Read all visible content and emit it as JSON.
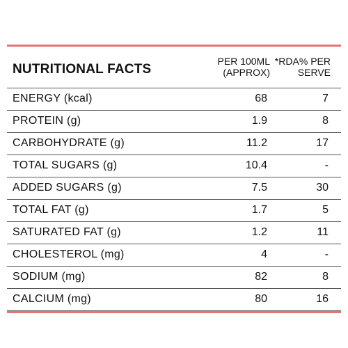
{
  "header": {
    "title": "NUTRITIONAL FACTS",
    "col1_line1": "PER 100ML",
    "col1_line2": "(APPROX)",
    "col2_line1": "*RDA% PER",
    "col2_line2": "SERVE"
  },
  "rows": [
    {
      "name": "ENERGY (kcal)",
      "per100ml": "68",
      "rda": "7"
    },
    {
      "name": "PROTEIN (g)",
      "per100ml": "1.9",
      "rda": "8"
    },
    {
      "name": "CARBOHYDRATE (g)",
      "per100ml": "11.2",
      "rda": "17"
    },
    {
      "name": "TOTAL SUGARS (g)",
      "per100ml": "10.4",
      "rda": "-"
    },
    {
      "name": "ADDED SUGARS (g)",
      "per100ml": "7.5",
      "rda": "30"
    },
    {
      "name": "TOTAL FAT (g)",
      "per100ml": "1.7",
      "rda": "5"
    },
    {
      "name": "SATURATED FAT (g)",
      "per100ml": "1.2",
      "rda": "11"
    },
    {
      "name": "CHOLESTEROL (mg)",
      "per100ml": "4",
      "rda": "-"
    },
    {
      "name": "SODIUM (mg)",
      "per100ml": "82",
      "rda": "8"
    },
    {
      "name": "CALCIUM (mg)",
      "per100ml": "80",
      "rda": "16"
    }
  ],
  "colors": {
    "accent_rule": "#e57373",
    "text": "#111111",
    "divider": "#555555"
  }
}
